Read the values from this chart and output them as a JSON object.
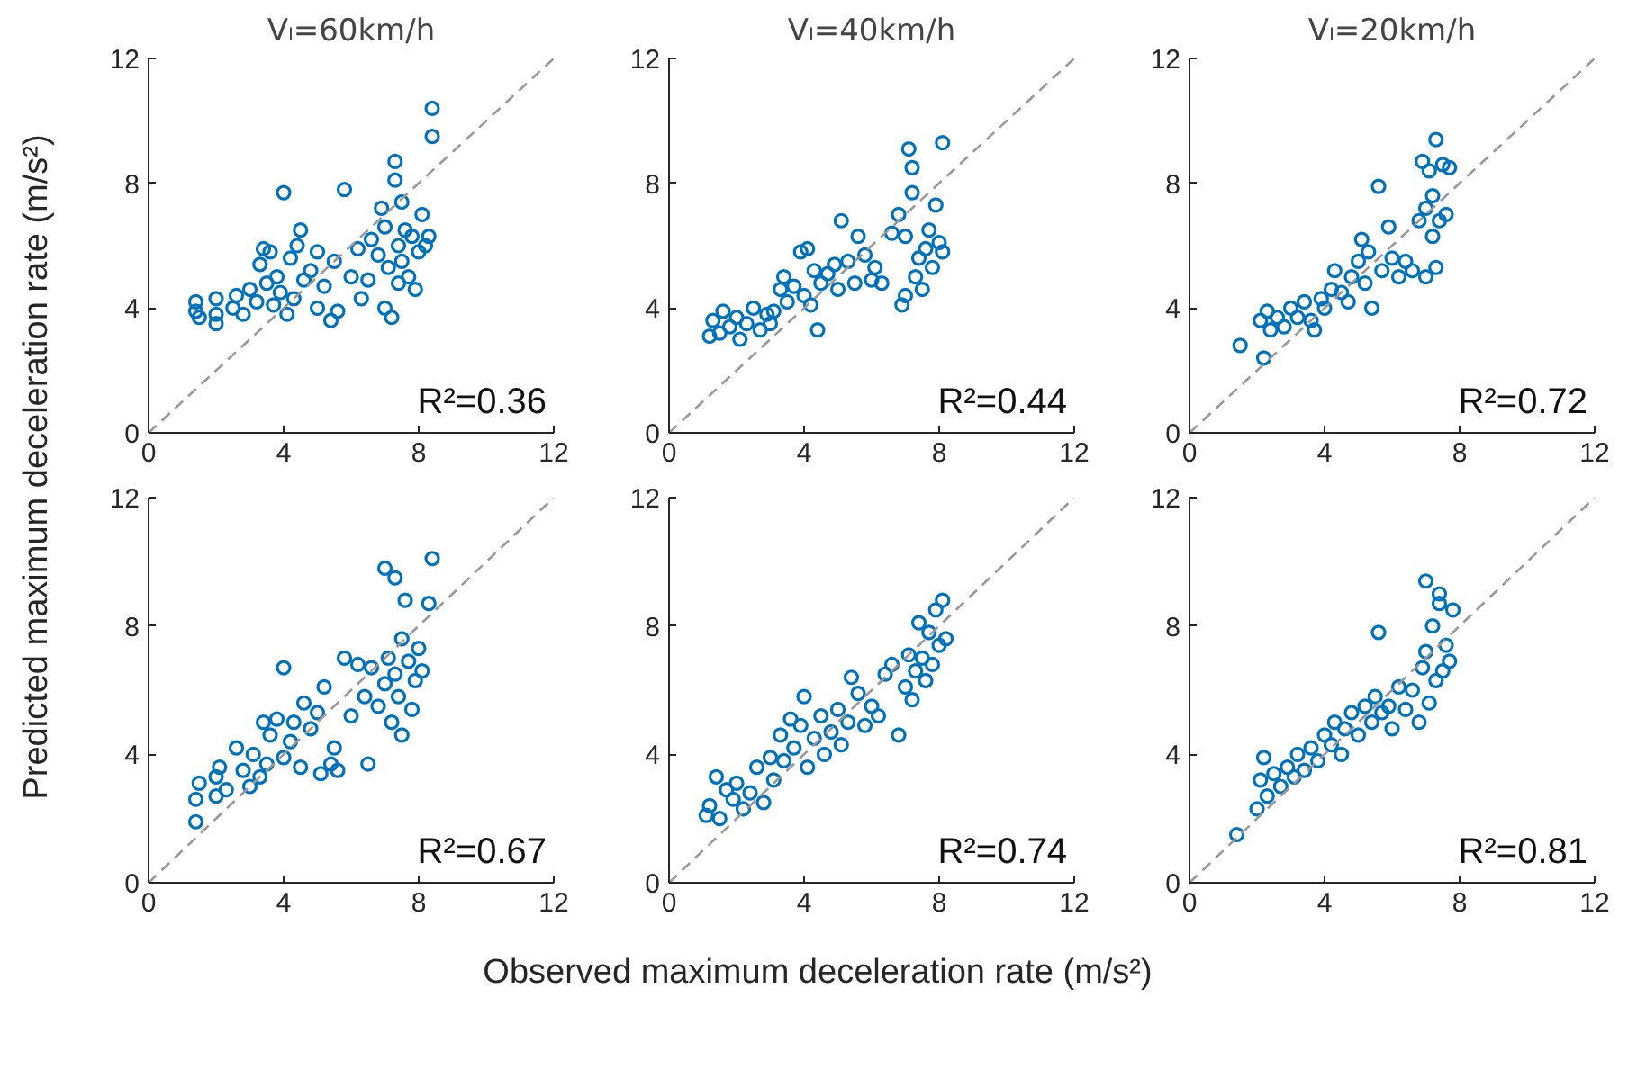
{
  "chart_data": [
    {
      "type": "scatter",
      "title": "Vₗ=60km/h",
      "ylabel": "Predicted maximum deceleration rate (m/s²)",
      "xlim": [
        0,
        12
      ],
      "ylim": [
        0,
        12
      ],
      "xticks": [
        0,
        4,
        8,
        12
      ],
      "yticks": [
        0,
        4,
        8,
        12
      ],
      "grid": false,
      "annotations": [
        "R²=0.36"
      ],
      "series": [
        {
          "type": "scatter",
          "color": "#0072bd",
          "marker": "circle",
          "x": [
            1.4,
            1.4,
            1.5,
            2.0,
            2.0,
            2.0,
            2.5,
            2.6,
            2.8,
            3.0,
            3.2,
            3.3,
            3.4,
            3.5,
            3.6,
            3.7,
            3.8,
            3.9,
            4.0,
            4.1,
            4.2,
            4.3,
            4.4,
            4.5,
            4.6,
            4.8,
            5.0,
            5.0,
            5.2,
            5.4,
            5.5,
            5.6,
            5.8,
            6.0,
            6.2,
            6.3,
            6.5,
            6.6,
            6.8,
            6.9,
            7.0,
            7.0,
            7.1,
            7.2,
            7.3,
            7.3,
            7.4,
            7.4,
            7.5,
            7.5,
            7.6,
            7.7,
            7.8,
            7.9,
            8.0,
            8.1,
            8.2,
            8.4,
            8.4,
            8.3
          ],
          "values": [
            4.2,
            3.9,
            3.7,
            4.3,
            3.8,
            3.5,
            4.0,
            4.4,
            3.8,
            4.6,
            4.2,
            5.4,
            5.9,
            4.8,
            5.8,
            4.1,
            5.0,
            4.5,
            7.7,
            3.8,
            5.6,
            4.3,
            6.0,
            6.5,
            4.9,
            5.2,
            4.0,
            5.8,
            4.7,
            3.6,
            5.5,
            3.9,
            7.8,
            5.0,
            5.9,
            4.3,
            4.9,
            6.2,
            5.7,
            7.2,
            4.0,
            6.6,
            5.3,
            3.7,
            8.1,
            8.7,
            6.0,
            4.8,
            7.4,
            5.5,
            6.5,
            5.0,
            6.3,
            4.6,
            5.8,
            7.0,
            6.0,
            9.5,
            10.4,
            6.3
          ]
        },
        {
          "type": "line",
          "color": "#999999",
          "line_style": "dashed",
          "x": [
            0,
            12
          ],
          "values": [
            0,
            12
          ]
        }
      ]
    },
    {
      "type": "scatter",
      "title": "Vₗ=40km/h",
      "xlim": [
        0,
        12
      ],
      "ylim": [
        0,
        12
      ],
      "xticks": [
        0,
        4,
        8,
        12
      ],
      "yticks": [
        0,
        4,
        8,
        12
      ],
      "grid": false,
      "annotations": [
        "R²=0.44"
      ],
      "series": [
        {
          "type": "scatter",
          "color": "#0072bd",
          "marker": "circle",
          "x": [
            1.2,
            1.3,
            1.5,
            1.6,
            1.8,
            2.0,
            2.1,
            2.3,
            2.5,
            2.7,
            2.9,
            3.0,
            3.1,
            3.3,
            3.4,
            3.5,
            3.7,
            3.9,
            4.0,
            4.1,
            4.2,
            4.3,
            4.4,
            4.5,
            4.7,
            4.9,
            5.0,
            5.1,
            5.3,
            5.5,
            5.6,
            5.8,
            6.0,
            6.1,
            6.3,
            6.6,
            6.8,
            6.9,
            7.0,
            7.0,
            7.1,
            7.2,
            7.2,
            7.3,
            7.4,
            7.5,
            7.6,
            7.7,
            7.8,
            7.9,
            8.0,
            8.1,
            8.1
          ],
          "values": [
            3.1,
            3.6,
            3.2,
            3.9,
            3.4,
            3.7,
            3.0,
            3.5,
            4.0,
            3.3,
            3.8,
            3.5,
            3.9,
            4.6,
            5.0,
            4.2,
            4.7,
            5.8,
            4.4,
            5.9,
            4.1,
            5.2,
            3.3,
            4.8,
            5.1,
            5.4,
            4.6,
            6.8,
            5.5,
            4.8,
            6.3,
            5.7,
            4.9,
            5.3,
            4.8,
            6.4,
            7.0,
            4.1,
            4.4,
            6.3,
            9.1,
            8.5,
            7.7,
            5.0,
            5.6,
            4.6,
            5.9,
            6.5,
            5.3,
            7.3,
            6.1,
            9.3,
            5.8
          ]
        },
        {
          "type": "line",
          "color": "#999999",
          "line_style": "dashed",
          "x": [
            0,
            12
          ],
          "values": [
            0,
            12
          ]
        }
      ]
    },
    {
      "type": "scatter",
      "title": "Vₗ=20km/h",
      "xlim": [
        0,
        12
      ],
      "ylim": [
        0,
        12
      ],
      "xticks": [
        0,
        4,
        8,
        12
      ],
      "yticks": [
        0,
        4,
        8,
        12
      ],
      "grid": false,
      "annotations": [
        "R²=0.72"
      ],
      "series": [
        {
          "type": "scatter",
          "color": "#0072bd",
          "marker": "circle",
          "x": [
            1.5,
            2.1,
            2.2,
            2.3,
            2.4,
            2.6,
            2.8,
            3.0,
            3.2,
            3.4,
            3.6,
            3.7,
            3.9,
            4.0,
            4.2,
            4.3,
            4.5,
            4.7,
            4.8,
            5.0,
            5.1,
            5.2,
            5.3,
            5.4,
            5.6,
            5.7,
            5.9,
            6.0,
            6.2,
            6.4,
            6.6,
            6.8,
            6.9,
            7.0,
            7.0,
            7.1,
            7.2,
            7.2,
            7.3,
            7.4,
            7.5,
            7.6,
            7.7,
            7.3
          ],
          "values": [
            2.8,
            3.6,
            2.4,
            3.9,
            3.3,
            3.7,
            3.4,
            4.0,
            3.7,
            4.2,
            3.6,
            3.3,
            4.3,
            4.0,
            4.6,
            5.2,
            4.5,
            4.2,
            5.0,
            5.5,
            6.2,
            4.8,
            5.8,
            4.0,
            7.9,
            5.2,
            6.6,
            5.6,
            5.0,
            5.5,
            5.2,
            6.8,
            8.7,
            7.2,
            5.0,
            8.4,
            6.3,
            7.6,
            9.4,
            6.8,
            8.6,
            7.0,
            8.5,
            5.3
          ]
        },
        {
          "type": "line",
          "color": "#999999",
          "line_style": "dashed",
          "x": [
            0,
            12
          ],
          "values": [
            0,
            12
          ]
        }
      ]
    },
    {
      "type": "scatter",
      "xlim": [
        0,
        12
      ],
      "ylim": [
        0,
        12
      ],
      "xticks": [
        0,
        4,
        8,
        12
      ],
      "yticks": [
        0,
        4,
        8,
        12
      ],
      "grid": false,
      "annotations": [
        "R²=0.67"
      ],
      "series": [
        {
          "type": "scatter",
          "color": "#0072bd",
          "marker": "circle",
          "x": [
            1.4,
            1.4,
            1.5,
            2.0,
            2.0,
            2.1,
            2.3,
            2.6,
            2.8,
            3.0,
            3.1,
            3.3,
            3.4,
            3.5,
            3.6,
            3.8,
            4.0,
            4.0,
            4.2,
            4.3,
            4.5,
            4.6,
            4.8,
            5.0,
            5.1,
            5.2,
            5.4,
            5.5,
            5.6,
            5.8,
            6.0,
            6.2,
            6.4,
            6.5,
            6.6,
            6.8,
            7.0,
            7.0,
            7.1,
            7.2,
            7.3,
            7.3,
            7.4,
            7.5,
            7.5,
            7.6,
            7.7,
            7.8,
            7.9,
            8.0,
            8.1,
            8.4,
            8.3
          ],
          "values": [
            1.9,
            2.6,
            3.1,
            2.7,
            3.3,
            3.6,
            2.9,
            4.2,
            3.5,
            3.0,
            4.0,
            3.3,
            5.0,
            3.7,
            4.6,
            5.1,
            3.9,
            6.7,
            4.4,
            5.0,
            3.6,
            5.6,
            4.8,
            5.3,
            3.4,
            6.1,
            3.7,
            4.2,
            3.5,
            7.0,
            5.2,
            6.8,
            5.8,
            3.7,
            6.7,
            5.5,
            9.8,
            6.2,
            7.0,
            5.0,
            6.5,
            9.5,
            5.8,
            7.6,
            4.6,
            8.8,
            6.9,
            5.4,
            6.3,
            7.3,
            6.6,
            10.1,
            8.7
          ]
        },
        {
          "type": "line",
          "color": "#999999",
          "line_style": "dashed",
          "x": [
            0,
            12
          ],
          "values": [
            0,
            12
          ]
        }
      ]
    },
    {
      "type": "scatter",
      "xlabel": "Observed maximum deceleration rate (m/s²)",
      "xlim": [
        0,
        12
      ],
      "ylim": [
        0,
        12
      ],
      "xticks": [
        0,
        4,
        8,
        12
      ],
      "yticks": [
        0,
        4,
        8,
        12
      ],
      "grid": false,
      "annotations": [
        "R²=0.74"
      ],
      "series": [
        {
          "type": "scatter",
          "color": "#0072bd",
          "marker": "circle",
          "x": [
            1.1,
            1.2,
            1.4,
            1.5,
            1.7,
            1.9,
            2.0,
            2.2,
            2.4,
            2.6,
            2.8,
            3.0,
            3.1,
            3.3,
            3.4,
            3.6,
            3.7,
            3.9,
            4.0,
            4.1,
            4.3,
            4.5,
            4.6,
            4.8,
            5.0,
            5.1,
            5.3,
            5.4,
            5.6,
            5.8,
            6.0,
            6.2,
            6.4,
            6.6,
            6.8,
            7.0,
            7.1,
            7.2,
            7.3,
            7.4,
            7.5,
            7.6,
            7.7,
            7.8,
            7.9,
            8.0,
            8.1,
            8.2
          ],
          "values": [
            2.1,
            2.4,
            3.3,
            2.0,
            2.9,
            2.6,
            3.1,
            2.3,
            2.8,
            3.6,
            2.5,
            3.9,
            3.2,
            4.6,
            3.8,
            5.1,
            4.2,
            4.9,
            5.8,
            3.6,
            4.5,
            5.2,
            4.0,
            4.7,
            5.4,
            4.3,
            5.0,
            6.4,
            5.9,
            4.9,
            5.5,
            5.2,
            6.5,
            6.8,
            4.6,
            6.1,
            7.1,
            5.7,
            6.6,
            8.1,
            7.0,
            6.3,
            7.8,
            6.8,
            8.5,
            7.4,
            8.8,
            7.6
          ]
        },
        {
          "type": "line",
          "color": "#999999",
          "line_style": "dashed",
          "x": [
            0,
            12
          ],
          "values": [
            0,
            12
          ]
        }
      ]
    },
    {
      "type": "scatter",
      "xlim": [
        0,
        12
      ],
      "ylim": [
        0,
        12
      ],
      "xticks": [
        0,
        4,
        8,
        12
      ],
      "yticks": [
        0,
        4,
        8,
        12
      ],
      "grid": false,
      "annotations": [
        "R²=0.81"
      ],
      "series": [
        {
          "type": "scatter",
          "color": "#0072bd",
          "marker": "circle",
          "x": [
            1.4,
            2.0,
            2.1,
            2.2,
            2.3,
            2.5,
            2.7,
            2.9,
            3.1,
            3.2,
            3.4,
            3.6,
            3.8,
            4.0,
            4.2,
            4.3,
            4.5,
            4.6,
            4.8,
            5.0,
            5.2,
            5.4,
            5.5,
            5.6,
            5.7,
            5.9,
            6.0,
            6.2,
            6.4,
            6.6,
            6.8,
            6.9,
            7.0,
            7.0,
            7.1,
            7.2,
            7.3,
            7.4,
            7.4,
            7.5,
            7.6,
            7.7,
            7.8
          ],
          "values": [
            1.5,
            2.3,
            3.2,
            3.9,
            2.7,
            3.4,
            3.0,
            3.6,
            3.3,
            4.0,
            3.5,
            4.2,
            3.8,
            4.6,
            4.3,
            5.0,
            4.0,
            4.8,
            5.3,
            4.6,
            5.5,
            5.0,
            5.8,
            7.8,
            5.3,
            5.5,
            4.8,
            6.1,
            5.4,
            6.0,
            5.0,
            6.7,
            9.4,
            7.2,
            5.6,
            8.0,
            6.3,
            9.0,
            8.7,
            6.6,
            7.4,
            6.9,
            8.5
          ]
        },
        {
          "type": "line",
          "color": "#999999",
          "line_style": "dashed",
          "x": [
            0,
            12
          ],
          "values": [
            0,
            12
          ]
        }
      ]
    }
  ]
}
